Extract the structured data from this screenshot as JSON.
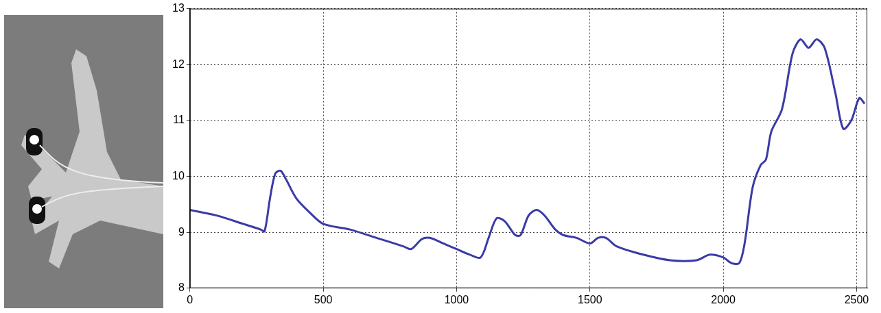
{
  "chart_data": {
    "type": "line",
    "x": [
      0,
      100,
      200,
      265,
      280,
      300,
      320,
      340,
      360,
      400,
      450,
      500,
      600,
      700,
      800,
      830,
      870,
      900,
      950,
      1000,
      1050,
      1090,
      1120,
      1150,
      1180,
      1220,
      1240,
      1270,
      1300,
      1330,
      1370,
      1400,
      1450,
      1500,
      1530,
      1560,
      1600,
      1700,
      1800,
      1900,
      1950,
      2000,
      2030,
      2060,
      2080,
      2110,
      2140,
      2160,
      2180,
      2220,
      2260,
      2290,
      2320,
      2350,
      2380,
      2420,
      2450,
      2480,
      2510,
      2530
    ],
    "values": [
      9.4,
      9.3,
      9.15,
      9.05,
      9.02,
      9.6,
      10.05,
      10.1,
      9.95,
      9.6,
      9.35,
      9.15,
      9.05,
      8.9,
      8.75,
      8.7,
      8.88,
      8.9,
      8.8,
      8.7,
      8.6,
      8.55,
      8.9,
      9.25,
      9.2,
      8.95,
      8.95,
      9.3,
      9.4,
      9.3,
      9.05,
      8.95,
      8.9,
      8.8,
      8.9,
      8.9,
      8.75,
      8.6,
      8.5,
      8.5,
      8.6,
      8.55,
      8.45,
      8.45,
      8.8,
      9.8,
      10.2,
      10.3,
      10.8,
      11.2,
      12.2,
      12.45,
      12.3,
      12.45,
      12.3,
      11.5,
      10.85,
      11.0,
      11.4,
      11.3
    ],
    "color": "#3a3aa8",
    "xlim": [
      0,
      2540
    ],
    "xticks": [
      0,
      500,
      1000,
      1500,
      2000,
      2500
    ],
    "ylim": [
      8,
      13
    ],
    "yticks": [
      8,
      9,
      10,
      11,
      12,
      13
    ],
    "grid": true
  }
}
